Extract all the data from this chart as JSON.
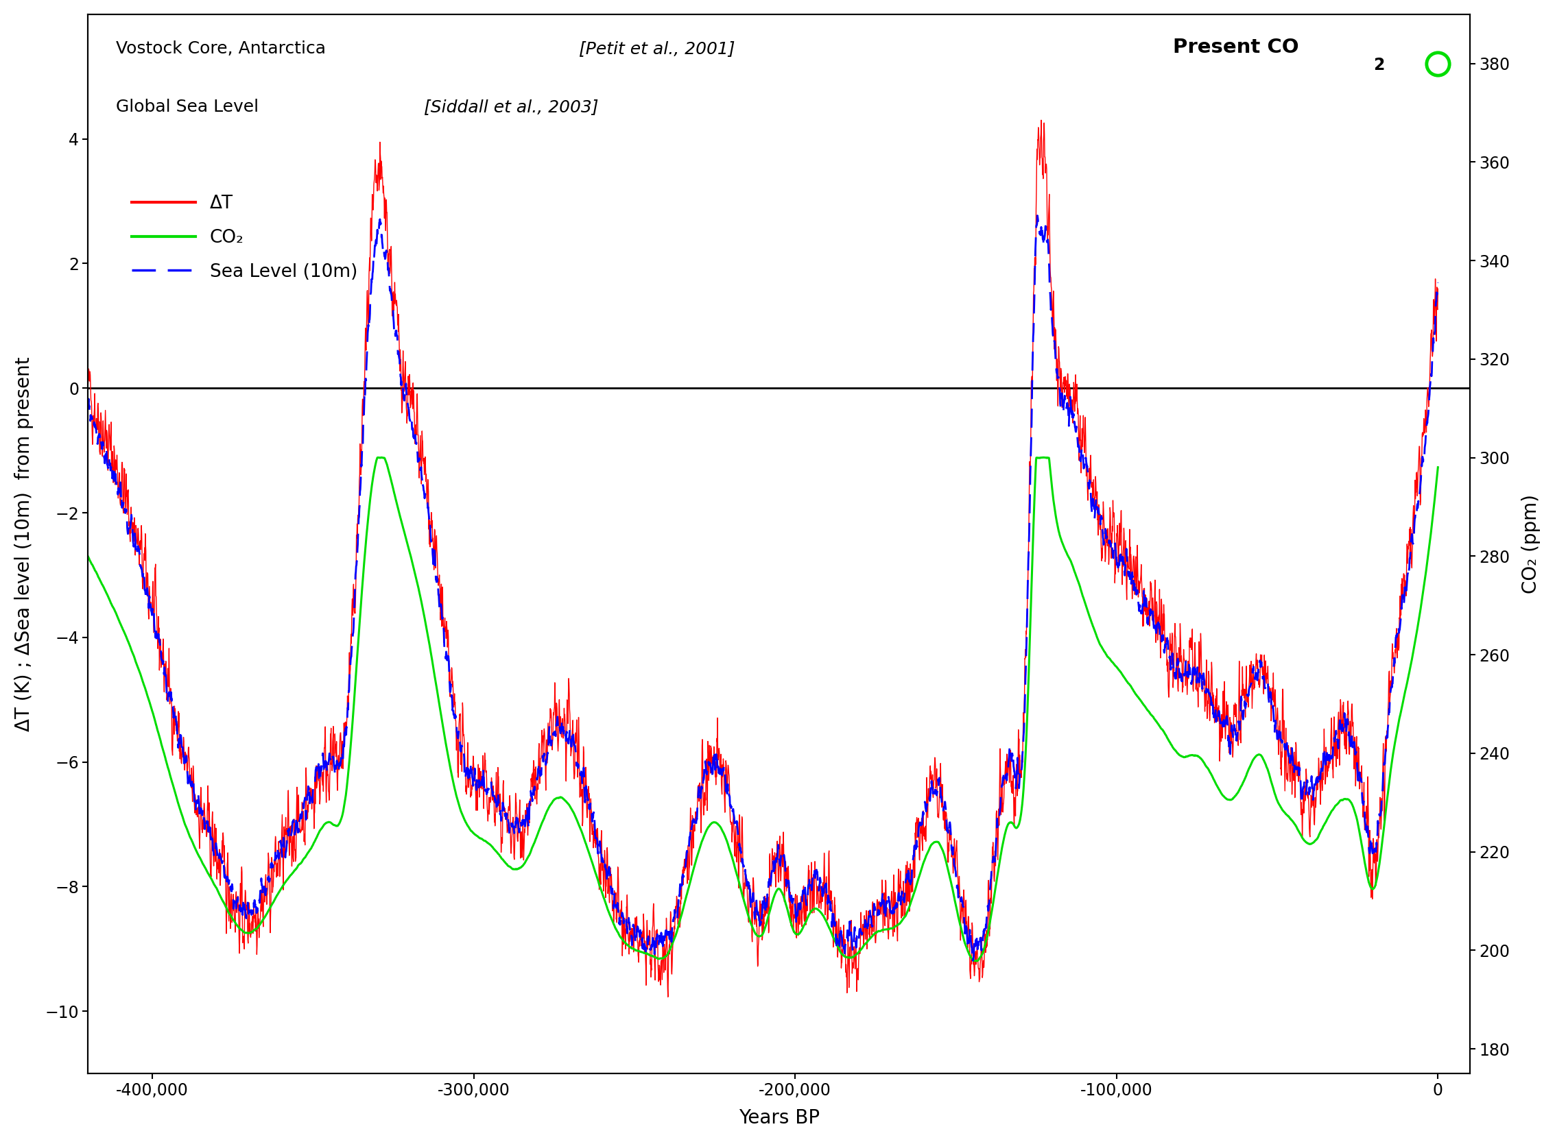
{
  "title_line1_normal": "Vostock Core, Antarctica   ",
  "title_line1_italic": "[Petit et al., 2001]",
  "title_line2_normal": "Global Sea Level   ",
  "title_line2_italic": "[Siddall et al., 2003]",
  "present_co2_label": "Present CO",
  "present_co2_sub": "2",
  "xlabel": "Years BP",
  "ylabel_left": "ΔT (K) ; ΔSea level (10m)  from present",
  "ylabel_right": "CO₂ (ppm)",
  "xlim": [
    -420000,
    10000
  ],
  "ylim_left": [
    -11,
    6
  ],
  "ylim_right": [
    175,
    390
  ],
  "yticks_left": [
    -10,
    -8,
    -6,
    -4,
    -2,
    0,
    2,
    4
  ],
  "yticks_right": [
    180,
    200,
    220,
    240,
    260,
    280,
    300,
    320,
    340,
    360,
    380
  ],
  "xticks": [
    -400000,
    -300000,
    -200000,
    -100000,
    0
  ],
  "co2_present_value": 380,
  "dt_color": "#ff0000",
  "co2_color": "#00dd00",
  "sea_color": "#0000ff",
  "zero_line_color": "#000000",
  "legend_dt": "ΔT",
  "legend_co2": "CO₂",
  "legend_sea": "Sea Level (10m)",
  "dt_linewidth": 1.0,
  "co2_linewidth": 2.2,
  "sea_linewidth": 2.0,
  "background_color": "#ffffff",
  "title_fontsize": 18,
  "label_fontsize": 20,
  "tick_fontsize": 17,
  "legend_fontsize": 19
}
